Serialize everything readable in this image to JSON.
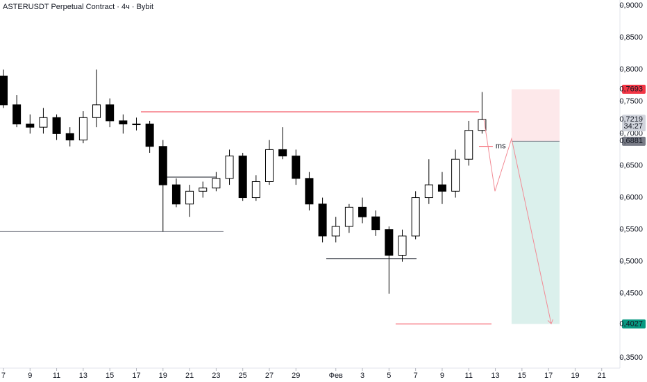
{
  "chart_data": {
    "type": "candlestick",
    "title": "ASTERUSDT Perpetual Contract · 4ч · Bybit",
    "x": [
      0,
      1,
      2,
      3,
      4,
      5,
      6,
      7,
      8,
      9,
      10,
      11,
      12,
      13,
      14,
      15,
      16,
      17,
      18,
      19,
      20,
      21,
      22,
      23,
      24,
      25,
      26,
      27,
      28,
      29,
      30,
      31,
      32,
      33,
      34,
      35,
      36
    ],
    "open": [
      0.79,
      0.745,
      0.715,
      0.71,
      0.725,
      0.7,
      0.69,
      0.725,
      0.745,
      0.72,
      0.715,
      0.715,
      0.68,
      0.62,
      0.59,
      0.61,
      0.615,
      0.63,
      0.665,
      0.6,
      0.625,
      0.675,
      0.665,
      0.63,
      0.59,
      0.54,
      0.555,
      0.585,
      0.57,
      0.55,
      0.51,
      0.54,
      0.6,
      0.62,
      0.61,
      0.66,
      0.705
    ],
    "high": [
      0.8,
      0.76,
      0.73,
      0.74,
      0.73,
      0.71,
      0.735,
      0.8,
      0.755,
      0.73,
      0.725,
      0.72,
      0.69,
      0.63,
      0.62,
      0.625,
      0.64,
      0.675,
      0.67,
      0.635,
      0.69,
      0.71,
      0.675,
      0.64,
      0.6,
      0.57,
      0.59,
      0.6,
      0.58,
      0.555,
      0.55,
      0.61,
      0.66,
      0.64,
      0.675,
      0.72,
      0.765
    ],
    "low": [
      0.74,
      0.71,
      0.7,
      0.7,
      0.69,
      0.68,
      0.685,
      0.71,
      0.71,
      0.7,
      0.705,
      0.67,
      0.547,
      0.585,
      0.57,
      0.6,
      0.61,
      0.62,
      0.595,
      0.595,
      0.62,
      0.66,
      0.62,
      0.58,
      0.53,
      0.53,
      0.545,
      0.56,
      0.54,
      0.45,
      0.5,
      0.535,
      0.59,
      0.59,
      0.6,
      0.65,
      0.7
    ],
    "close": [
      0.745,
      0.715,
      0.71,
      0.725,
      0.7,
      0.69,
      0.725,
      0.745,
      0.72,
      0.715,
      0.715,
      0.68,
      0.62,
      0.59,
      0.61,
      0.615,
      0.63,
      0.665,
      0.6,
      0.625,
      0.675,
      0.665,
      0.63,
      0.59,
      0.54,
      0.555,
      0.585,
      0.57,
      0.55,
      0.51,
      0.54,
      0.6,
      0.62,
      0.61,
      0.66,
      0.705,
      0.7219
    ],
    "up_color": "#ffffff",
    "down_color": "#000000",
    "xlim": [
      -0.26,
      46.37
    ],
    "ylim": [
      0.3337,
      0.9087
    ],
    "xticks": [
      {
        "value": 0,
        "label": "7"
      },
      {
        "value": 2,
        "label": "9"
      },
      {
        "value": 4,
        "label": "11"
      },
      {
        "value": 6,
        "label": "13"
      },
      {
        "value": 8,
        "label": "15"
      },
      {
        "value": 10,
        "label": "17"
      },
      {
        "value": 12,
        "label": "19"
      },
      {
        "value": 14,
        "label": "21"
      },
      {
        "value": 16,
        "label": "23"
      },
      {
        "value": 18,
        "label": "25"
      },
      {
        "value": 20,
        "label": "27"
      },
      {
        "value": 22,
        "label": "29"
      },
      {
        "value": 25,
        "label": "Фев"
      },
      {
        "value": 27,
        "label": "3"
      },
      {
        "value": 29,
        "label": "5"
      },
      {
        "value": 31,
        "label": "7"
      },
      {
        "value": 33,
        "label": "9"
      },
      {
        "value": 35,
        "label": "11"
      },
      {
        "value": 37,
        "label": "13"
      },
      {
        "value": 39,
        "label": "15"
      },
      {
        "value": 41,
        "label": "17"
      },
      {
        "value": 43,
        "label": "19"
      },
      {
        "value": 45,
        "label": "21"
      }
    ],
    "yticks": [
      {
        "value": 0.9,
        "label": "0,9000"
      },
      {
        "value": 0.85,
        "label": "0,8500"
      },
      {
        "value": 0.8,
        "label": "0,8000"
      },
      {
        "value": 0.75,
        "label": "0,7500"
      },
      {
        "value": 0.7,
        "label": "0,7000"
      },
      {
        "value": 0.65,
        "label": "0,6500"
      },
      {
        "value": 0.6,
        "label": "0,6000"
      },
      {
        "value": 0.55,
        "label": "0,5500"
      },
      {
        "value": 0.5,
        "label": "0,5000"
      },
      {
        "value": 0.45,
        "label": "0,4500"
      },
      {
        "value": 0.35,
        "label": "0,3500"
      }
    ],
    "levels": [
      {
        "value": 0.734,
        "from": 10.34,
        "to": 35.77,
        "color": "#f23645"
      },
      {
        "value": 0.547,
        "from": -0.26,
        "to": 16.55,
        "color": "#787b86"
      },
      {
        "value": 0.632,
        "from": 12.27,
        "to": 16.03,
        "color": "#131722"
      },
      {
        "value": 0.5045,
        "from": 24.28,
        "to": 31.07,
        "color": "#131722"
      },
      {
        "value": 0.4027,
        "from": 29.5,
        "to": 36.71,
        "color": "#f23645"
      },
      {
        "value": 0.68,
        "from": 35.77,
        "to": 36.81,
        "color": "#f23645",
        "label": "ms"
      }
    ],
    "position": {
      "from": 38.22,
      "to": 41.83,
      "stop": 0.7693,
      "entry": 0.6881,
      "target": 0.4027,
      "stop_color": "#fde8ea",
      "target_color": "#dbf0ec"
    },
    "projection": {
      "x": [
        36.14,
        36.97,
        38.22,
        41.2
      ],
      "y": [
        0.722,
        0.61,
        0.692,
        0.403
      ],
      "color": "#f28b95"
    },
    "price_tags": [
      {
        "value": 0.7693,
        "label": "0,7693",
        "color": "#f23645"
      },
      {
        "value": 0.7219,
        "label": "0,7219",
        "color": "#d1d4dc",
        "countdown": "34:27"
      },
      {
        "value": 0.6881,
        "label": "0,6881",
        "color": "#787b86"
      },
      {
        "value": 0.4027,
        "label": "0,4027",
        "color": "#089981"
      }
    ]
  }
}
